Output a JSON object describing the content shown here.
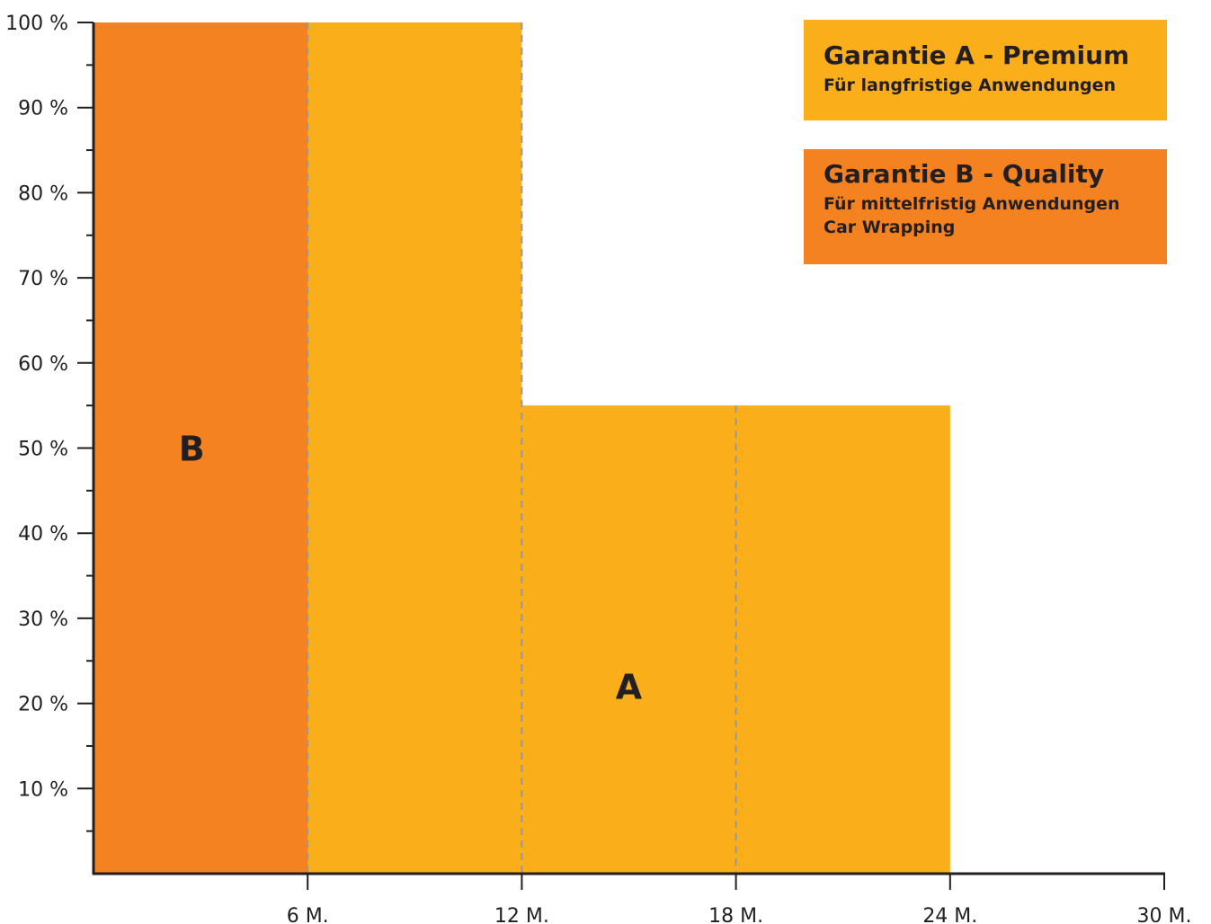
{
  "chart_data": {
    "type": "bar",
    "x_ticks": [
      {
        "value": 6,
        "label": "6 M."
      },
      {
        "value": 12,
        "label": "12 M."
      },
      {
        "value": 18,
        "label": "18 M."
      },
      {
        "value": 24,
        "label": "24 M."
      },
      {
        "value": 30,
        "label": "30 M."
      }
    ],
    "y_ticks": [
      {
        "value": 10,
        "label": "10 %"
      },
      {
        "value": 20,
        "label": "20 %"
      },
      {
        "value": 30,
        "label": "30 %"
      },
      {
        "value": 40,
        "label": "40 %"
      },
      {
        "value": 50,
        "label": "50 %"
      },
      {
        "value": 60,
        "label": "60 %"
      },
      {
        "value": 70,
        "label": "70 %"
      },
      {
        "value": 80,
        "label": "80 %"
      },
      {
        "value": 90,
        "label": "90 %"
      },
      {
        "value": 100,
        "label": "100 %"
      }
    ],
    "xlim": [
      0,
      30
    ],
    "ylim": [
      0,
      100
    ],
    "series": [
      {
        "name": "A",
        "color": "#f9ae1a",
        "segments": [
          {
            "x_start": 0,
            "x_end": 12,
            "value": 100
          },
          {
            "x_start": 12,
            "x_end": 24,
            "value": 55
          }
        ]
      },
      {
        "name": "B",
        "color": "#f58220",
        "segments": [
          {
            "x_start": 0,
            "x_end": 6,
            "value": 100
          }
        ]
      }
    ],
    "dashed_lines_at": [
      6,
      12,
      18
    ],
    "legend_placement": "top-right"
  },
  "legend": {
    "a": {
      "title": "Garantie A - Premium",
      "line1": "Für langfristige Anwendungen",
      "color": "#f9ae1a"
    },
    "b": {
      "title": "Garantie B - Quality",
      "line1": "Für mittelfristig  Anwendungen",
      "line2": "Car Wrapping",
      "color": "#f58220"
    }
  },
  "colors": {
    "axis": "#231f20",
    "dashed": "#999999"
  }
}
